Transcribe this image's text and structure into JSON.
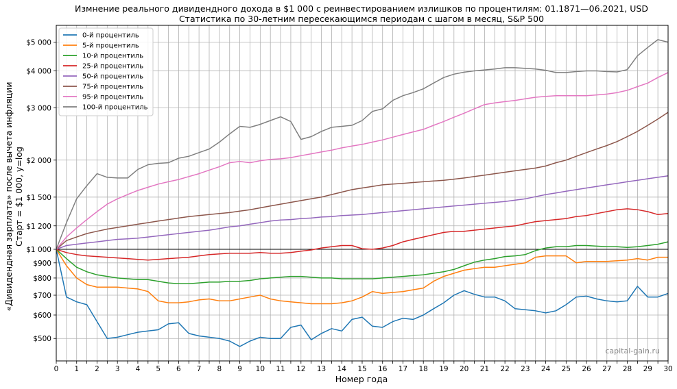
{
  "chart_data": {
    "type": "line",
    "title": "Измнение реального дивидендного дохода в $1 000 с реинвестированием излишков по процентилям: 01.1871—06.2021, USD",
    "subtitle": "Статистика по 30-летним пересекающимся периодам с шагом в месяц, S&P 500",
    "xlabel": "Номер года",
    "ylabel_line1": "«Дивидендная зарплата» после вычета инфляции",
    "ylabel_line2": "Старт = $1 000, y=log",
    "y_scale": "log",
    "xlim": [
      0,
      30
    ],
    "ylim": [
      420,
      5700
    ],
    "grid": true,
    "legend_position": "top-left",
    "watermark": "capital-gain.ru",
    "x_ticks": [
      0,
      0.5,
      1,
      1.5,
      2,
      2.5,
      3,
      3.5,
      4,
      4.5,
      5,
      5.5,
      6,
      6.5,
      7,
      7.5,
      8,
      8.5,
      9,
      9.5,
      10,
      10.5,
      11,
      11.5,
      12,
      12.5,
      13,
      13.5,
      14,
      14.5,
      15,
      15.5,
      16,
      16.5,
      17,
      17.5,
      18,
      18.5,
      19,
      19.5,
      20,
      20.5,
      21,
      21.5,
      22,
      22.5,
      23,
      23.5,
      24,
      24.5,
      25,
      25.5,
      26,
      26.5,
      27,
      27.5,
      28,
      28.5,
      29,
      29.5,
      30
    ],
    "x_tick_labels": [
      "0",
      "",
      "1",
      "",
      "2",
      "",
      "3",
      "",
      "4",
      "",
      "5",
      "",
      "6",
      "",
      "7",
      "",
      "8",
      "",
      "9",
      "",
      "10",
      "",
      "11",
      "",
      "12",
      "",
      "13",
      "",
      "14",
      "",
      "15",
      "",
      "16",
      "",
      "17",
      "",
      "18",
      "",
      "19",
      "",
      "20",
      "",
      "21",
      "",
      "22",
      "",
      "23",
      "",
      "24",
      "",
      "25",
      "",
      "26",
      "",
      "27",
      "",
      "28",
      "",
      "29",
      "",
      "30"
    ],
    "y_ticks": [
      {
        "value": 500,
        "label": "$500"
      },
      {
        "value": 600,
        "label": "$600"
      },
      {
        "value": 700,
        "label": "$700"
      },
      {
        "value": 800,
        "label": "$800"
      },
      {
        "value": 900,
        "label": "$900"
      },
      {
        "value": 1000,
        "label": "$1 000"
      },
      {
        "value": 1200,
        "label": "$1 200"
      },
      {
        "value": 1500,
        "label": "$1 500"
      },
      {
        "value": 2000,
        "label": "$2 000"
      },
      {
        "value": 3000,
        "label": "$3 000"
      },
      {
        "value": 4000,
        "label": "$4 000"
      },
      {
        "value": 5000,
        "label": "$5 000"
      }
    ],
    "reference_line": {
      "value": 1000,
      "color": "#000000"
    },
    "x": [
      0,
      0.5,
      1,
      1.5,
      2,
      2.5,
      3,
      3.5,
      4,
      4.5,
      5,
      5.5,
      6,
      6.5,
      7,
      7.5,
      8,
      8.5,
      9,
      9.5,
      10,
      10.5,
      11,
      11.5,
      12,
      12.5,
      13,
      13.5,
      14,
      14.5,
      15,
      15.5,
      16,
      16.5,
      17,
      17.5,
      18,
      18.5,
      19,
      19.5,
      20,
      20.5,
      21,
      21.5,
      22,
      22.5,
      23,
      23.5,
      24,
      24.5,
      25,
      25.5,
      26,
      26.5,
      27,
      27.5,
      28,
      28.5,
      29,
      29.5,
      30
    ],
    "series": [
      {
        "name": "0-й процентиль",
        "color": "#1f77b4",
        "values": [
          1000,
          690,
          665,
          650,
          570,
          500,
          505,
          515,
          525,
          530,
          535,
          560,
          565,
          520,
          510,
          505,
          500,
          490,
          470,
          490,
          505,
          500,
          500,
          545,
          555,
          495,
          520,
          540,
          530,
          580,
          590,
          550,
          545,
          570,
          585,
          580,
          600,
          630,
          660,
          700,
          725,
          705,
          690,
          690,
          670,
          630,
          625,
          620,
          610,
          620,
          650,
          690,
          695,
          680,
          670,
          665,
          670,
          750,
          690,
          690,
          710
        ]
      },
      {
        "name": "5-й процентиль",
        "color": "#ff7f0e",
        "values": [
          1000,
          880,
          800,
          760,
          745,
          745,
          745,
          740,
          735,
          720,
          670,
          660,
          660,
          665,
          675,
          680,
          670,
          670,
          680,
          690,
          700,
          680,
          670,
          665,
          660,
          655,
          655,
          655,
          660,
          670,
          690,
          720,
          710,
          715,
          720,
          730,
          740,
          780,
          810,
          830,
          850,
          860,
          870,
          870,
          880,
          890,
          900,
          940,
          950,
          950,
          950,
          900,
          910,
          910,
          910,
          915,
          920,
          930,
          920,
          940,
          940
        ]
      },
      {
        "name": "10-й процентиль",
        "color": "#2ca02c",
        "values": [
          1000,
          930,
          870,
          840,
          820,
          810,
          800,
          795,
          790,
          790,
          780,
          770,
          765,
          765,
          770,
          775,
          775,
          780,
          780,
          785,
          795,
          800,
          805,
          810,
          810,
          805,
          800,
          800,
          795,
          795,
          795,
          795,
          800,
          805,
          810,
          815,
          820,
          830,
          840,
          855,
          880,
          905,
          920,
          930,
          945,
          950,
          960,
          990,
          1010,
          1020,
          1020,
          1030,
          1030,
          1025,
          1020,
          1020,
          1015,
          1020,
          1030,
          1040,
          1060
        ]
      },
      {
        "name": "25-й процентиль",
        "color": "#d62728",
        "values": [
          1000,
          975,
          960,
          950,
          945,
          940,
          935,
          930,
          925,
          920,
          925,
          930,
          935,
          940,
          950,
          960,
          965,
          970,
          970,
          970,
          975,
          970,
          970,
          975,
          985,
          995,
          1010,
          1020,
          1030,
          1030,
          1005,
          1000,
          1010,
          1030,
          1060,
          1080,
          1100,
          1120,
          1140,
          1150,
          1150,
          1160,
          1170,
          1180,
          1190,
          1200,
          1220,
          1240,
          1250,
          1260,
          1270,
          1290,
          1300,
          1320,
          1340,
          1360,
          1370,
          1360,
          1340,
          1310,
          1320
        ]
      },
      {
        "name": "50-й процентиль",
        "color": "#9467bd",
        "values": [
          1000,
          1030,
          1040,
          1050,
          1060,
          1070,
          1080,
          1085,
          1090,
          1100,
          1110,
          1120,
          1130,
          1140,
          1150,
          1160,
          1175,
          1190,
          1200,
          1215,
          1230,
          1245,
          1255,
          1260,
          1270,
          1275,
          1285,
          1290,
          1300,
          1305,
          1310,
          1320,
          1330,
          1340,
          1350,
          1360,
          1370,
          1380,
          1390,
          1400,
          1410,
          1420,
          1430,
          1440,
          1450,
          1465,
          1480,
          1505,
          1530,
          1550,
          1570,
          1590,
          1610,
          1630,
          1650,
          1670,
          1690,
          1710,
          1730,
          1750,
          1770
        ]
      },
      {
        "name": "75-й процентиль",
        "color": "#8c564b",
        "values": [
          1000,
          1070,
          1100,
          1130,
          1150,
          1170,
          1185,
          1200,
          1215,
          1230,
          1245,
          1260,
          1275,
          1290,
          1300,
          1310,
          1320,
          1330,
          1345,
          1360,
          1380,
          1400,
          1420,
          1440,
          1460,
          1480,
          1500,
          1530,
          1560,
          1590,
          1610,
          1630,
          1650,
          1660,
          1670,
          1680,
          1690,
          1700,
          1710,
          1725,
          1740,
          1760,
          1780,
          1800,
          1820,
          1840,
          1860,
          1880,
          1910,
          1960,
          2000,
          2060,
          2120,
          2180,
          2240,
          2310,
          2400,
          2500,
          2620,
          2750,
          2900
        ]
      },
      {
        "name": "95-й процентиль",
        "color": "#e377c2",
        "values": [
          1000,
          1100,
          1180,
          1260,
          1340,
          1420,
          1480,
          1530,
          1580,
          1620,
          1660,
          1690,
          1720,
          1760,
          1800,
          1850,
          1900,
          1960,
          1980,
          1960,
          1990,
          2010,
          2020,
          2040,
          2070,
          2100,
          2130,
          2160,
          2200,
          2230,
          2260,
          2300,
          2340,
          2390,
          2440,
          2490,
          2540,
          2620,
          2700,
          2790,
          2880,
          2980,
          3080,
          3120,
          3150,
          3180,
          3220,
          3260,
          3280,
          3300,
          3300,
          3300,
          3300,
          3320,
          3340,
          3380,
          3440,
          3540,
          3640,
          3800,
          3950
        ]
      },
      {
        "name": "100-й процентиль",
        "color": "#7f7f7f",
        "values": [
          1000,
          1230,
          1480,
          1640,
          1800,
          1750,
          1740,
          1740,
          1860,
          1930,
          1950,
          1960,
          2030,
          2060,
          2120,
          2180,
          2300,
          2450,
          2600,
          2580,
          2640,
          2720,
          2800,
          2700,
          2350,
          2400,
          2500,
          2580,
          2600,
          2620,
          2720,
          2920,
          2980,
          3180,
          3300,
          3380,
          3480,
          3640,
          3800,
          3900,
          3960,
          4000,
          4030,
          4060,
          4100,
          4100,
          4080,
          4060,
          4020,
          3950,
          3950,
          3980,
          4000,
          4000,
          3980,
          3970,
          4040,
          4500,
          4800,
          5100,
          5000
        ]
      }
    ]
  }
}
